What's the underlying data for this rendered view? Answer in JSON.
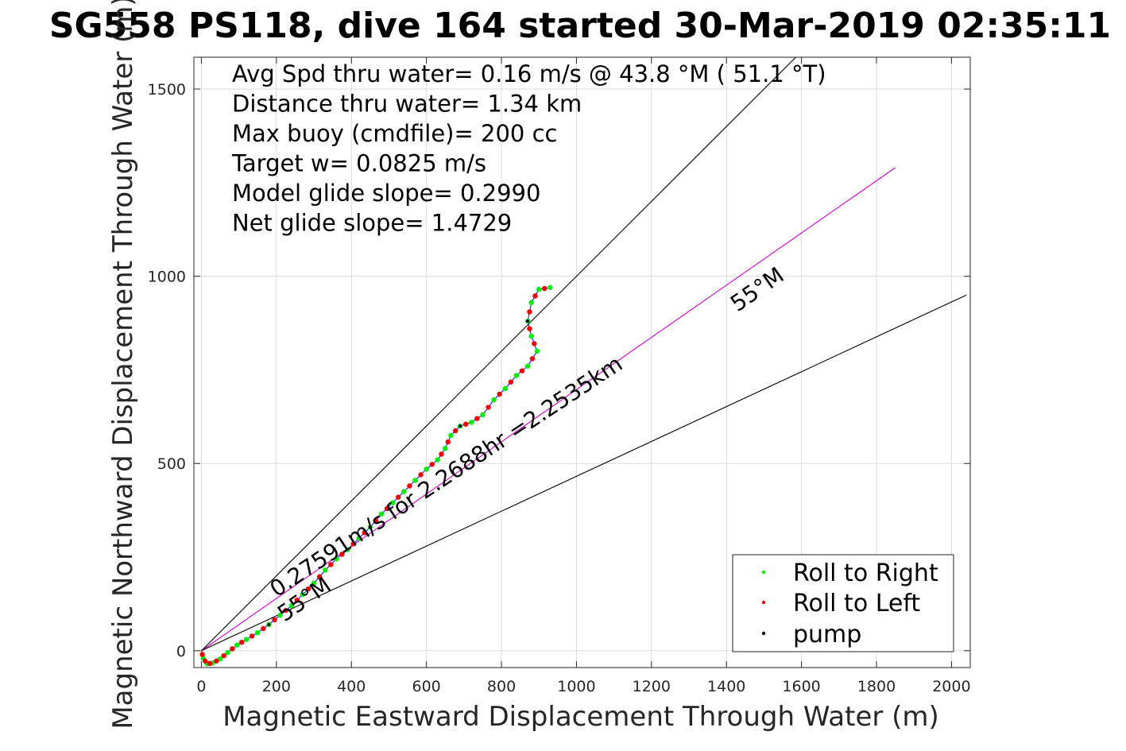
{
  "chart_data": {
    "type": "line",
    "title": "SG558 PS118, dive 164 started 30-Mar-2019 02:35:11",
    "xlabel": "Magnetic Eastward Displacement Through Water (m)",
    "ylabel": "Magnetic Northward Displacement Through Water (m)",
    "xlim": [
      -20,
      2050
    ],
    "ylim": [
      -45,
      1585
    ],
    "xticks": [
      0,
      200,
      400,
      600,
      800,
      1000,
      1200,
      1400,
      1600,
      1800,
      2000
    ],
    "yticks": [
      0,
      500,
      1000,
      1500
    ],
    "xtick_labels": [
      "0",
      "200",
      "400",
      "600",
      "800",
      "1000",
      "1200",
      "1400",
      "1600",
      "1800",
      "2000"
    ],
    "ytick_labels": [
      "0",
      "500",
      "1000",
      "1500"
    ],
    "grid": true,
    "annotations": [
      "Avg Spd thru water=  0.16 m/s @  43.8 °M ( 51.1 °T)",
      "Distance thru water=  1.34 km",
      "Max buoy (cmdfile)= 200 cc",
      "Target w= 0.0825 m/s",
      "Model glide slope= 0.2990",
      "Net glide slope= 1.4729"
    ],
    "rotated_labels": {
      "course": "0.27591m/s for 2.2688hr =2.2535km",
      "heading_upper": "55°M",
      "heading_lower": "55°M"
    },
    "reference_lines": [
      {
        "name": "upper bound",
        "color": "#000000",
        "points": [
          [
            0,
            0
          ],
          [
            1600,
            1600
          ]
        ]
      },
      {
        "name": "heading",
        "color": "#cc00cc",
        "points": [
          [
            0,
            0
          ],
          [
            1850,
            1290
          ]
        ]
      },
      {
        "name": "lower bound",
        "color": "#000000",
        "points": [
          [
            0,
            0
          ],
          [
            2040,
            950
          ]
        ]
      }
    ],
    "track": {
      "color": "#0000ee",
      "points": [
        [
          0,
          0
        ],
        [
          5,
          -20
        ],
        [
          15,
          -35
        ],
        [
          30,
          -33
        ],
        [
          50,
          -22
        ],
        [
          70,
          -5
        ],
        [
          95,
          15
        ],
        [
          120,
          30
        ],
        [
          150,
          48
        ],
        [
          180,
          70
        ],
        [
          210,
          95
        ],
        [
          240,
          120
        ],
        [
          270,
          150
        ],
        [
          300,
          180
        ],
        [
          330,
          215
        ],
        [
          360,
          245
        ],
        [
          390,
          270
        ],
        [
          420,
          300
        ],
        [
          450,
          330
        ],
        [
          480,
          365
        ],
        [
          510,
          395
        ],
        [
          540,
          425
        ],
        [
          570,
          455
        ],
        [
          600,
          485
        ],
        [
          630,
          510
        ],
        [
          650,
          540
        ],
        [
          665,
          575
        ],
        [
          690,
          600
        ],
        [
          720,
          610
        ],
        [
          750,
          630
        ],
        [
          780,
          670
        ],
        [
          810,
          700
        ],
        [
          840,
          735
        ],
        [
          870,
          760
        ],
        [
          895,
          800
        ],
        [
          880,
          840
        ],
        [
          870,
          880
        ],
        [
          880,
          930
        ],
        [
          900,
          965
        ],
        [
          930,
          970
        ]
      ]
    },
    "series": [
      {
        "name": "Roll to Right",
        "color": "#00ee00"
      },
      {
        "name": "Roll to Left",
        "color": "#ee0000"
      },
      {
        "name": "pump",
        "color": "#000000"
      }
    ],
    "legend_position": "bottom-right"
  }
}
